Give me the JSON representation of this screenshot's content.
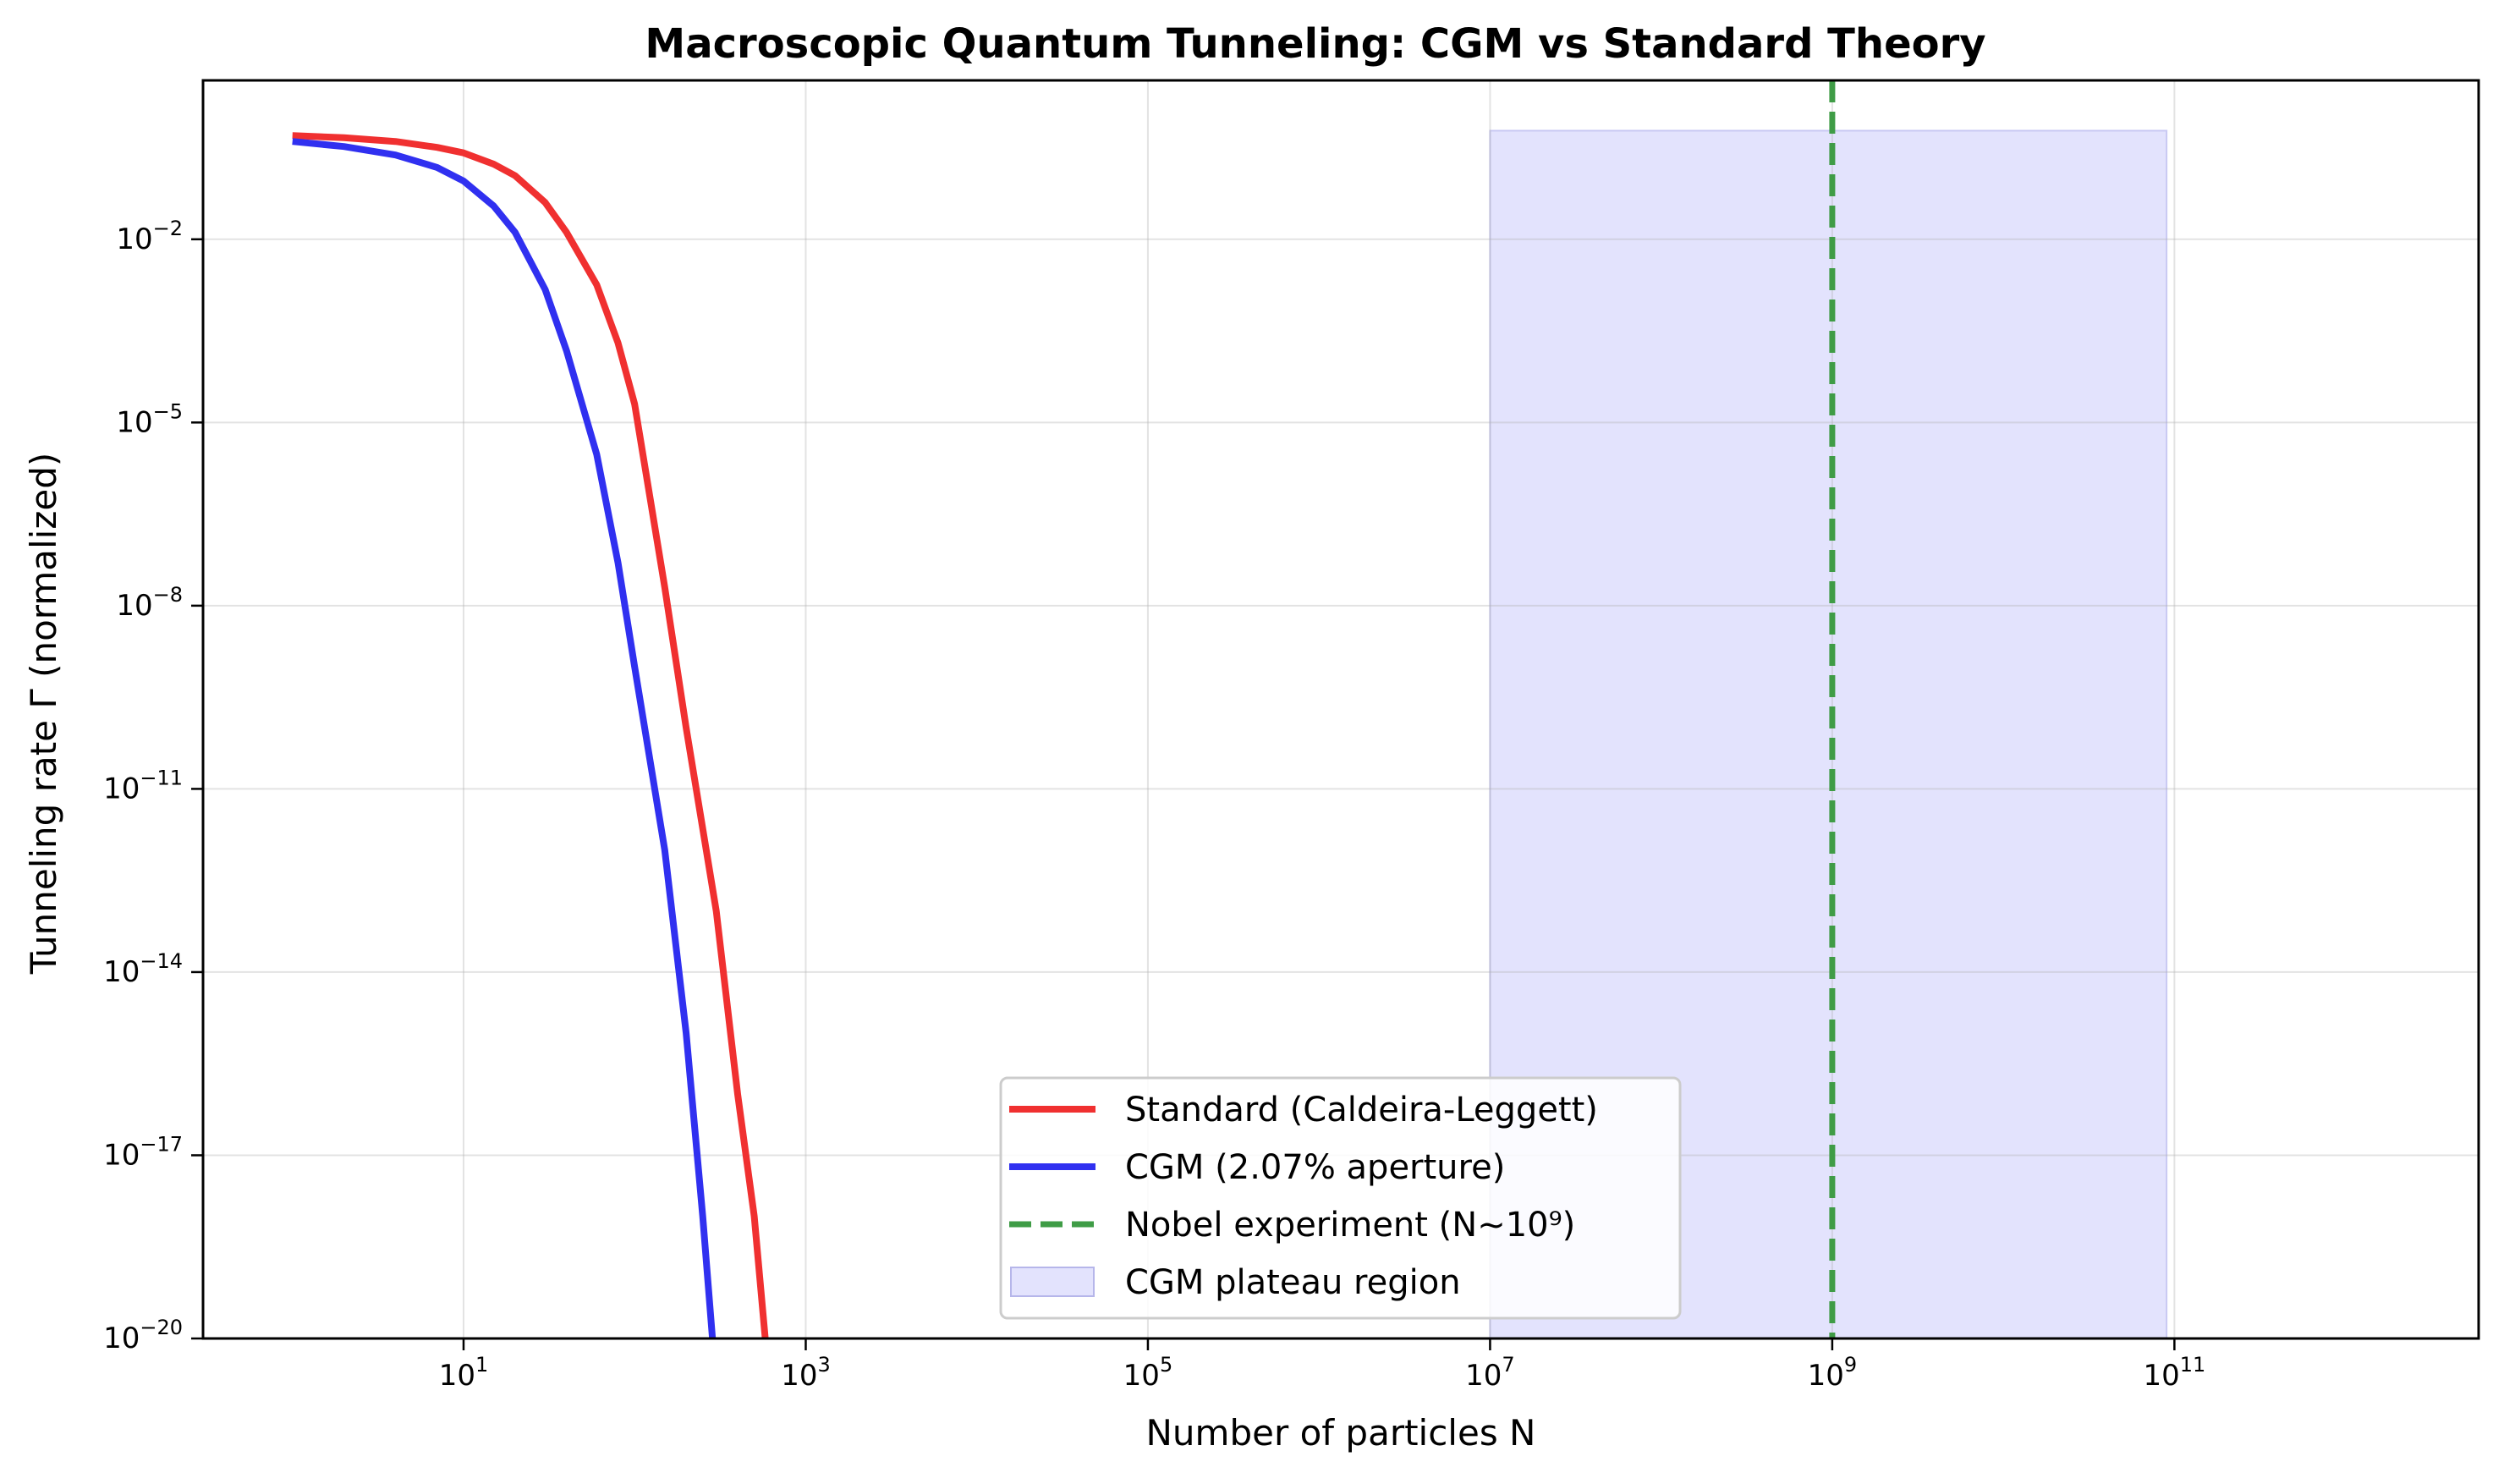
{
  "chart_data": {
    "type": "line",
    "title": "Macroscopic Quantum Tunneling: CGM vs Standard Theory",
    "xlabel": "Number of particles N",
    "ylabel": "Tunneling rate Γ (normalized)",
    "x_scale": "log",
    "y_scale": "log",
    "xlim": [
      0.3,
      6000000000000
    ],
    "ylim": [
      1e-20,
      4
    ],
    "x_ticks": [
      {
        "value": 10,
        "base": "10",
        "exp": "1"
      },
      {
        "value": 1000,
        "base": "10",
        "exp": "3"
      },
      {
        "value": 100000,
        "base": "10",
        "exp": "5"
      },
      {
        "value": 10000000,
        "base": "10",
        "exp": "7"
      },
      {
        "value": 1000000000,
        "base": "10",
        "exp": "9"
      },
      {
        "value": 100000000000,
        "base": "10",
        "exp": "11"
      }
    ],
    "y_ticks": [
      {
        "value": 0.01,
        "base": "10",
        "exp": "−2"
      },
      {
        "value": 1e-05,
        "base": "10",
        "exp": "−5"
      },
      {
        "value": 1e-08,
        "base": "10",
        "exp": "−8"
      },
      {
        "value": 1e-11,
        "base": "10",
        "exp": "−11"
      },
      {
        "value": 1e-14,
        "base": "10",
        "exp": "−14"
      },
      {
        "value": 1e-17,
        "base": "10",
        "exp": "−17"
      },
      {
        "value": 1e-20,
        "base": "10",
        "exp": "−20"
      }
    ],
    "grid": true,
    "legend_position": "lower-center",
    "series": [
      {
        "name": "Standard (Caldeira-Leggett)",
        "color": "#f03030",
        "style": "solid",
        "x": [
          1,
          2,
          4,
          7,
          10,
          15,
          20,
          30,
          40,
          60,
          80,
          100,
          150,
          200,
          300,
          400,
          500,
          580
        ],
        "y": [
          0.5,
          0.46,
          0.4,
          0.32,
          0.26,
          0.17,
          0.11,
          0.04,
          0.013,
          0.0018,
          0.0002,
          2e-05,
          2e-08,
          1e-10,
          1e-13,
          1e-16,
          1e-18,
          1e-20
        ]
      },
      {
        "name": "CGM (2.07% aperture)",
        "color": "#3030f0",
        "style": "solid",
        "x": [
          1,
          2,
          4,
          7,
          10,
          15,
          20,
          30,
          40,
          60,
          80,
          100,
          150,
          200,
          250,
          285
        ],
        "y": [
          0.4,
          0.33,
          0.24,
          0.15,
          0.09,
          0.035,
          0.013,
          0.0015,
          0.00015,
          3e-06,
          5e-08,
          1e-09,
          1e-12,
          1e-15,
          1e-18,
          1e-20
        ]
      }
    ],
    "vline": {
      "name": "Nobel experiment (N~10⁹)",
      "x": 1000000000,
      "color": "#3f9c46",
      "style": "dashed"
    },
    "span": {
      "name": "CGM plateau region",
      "x_range": [
        10000000,
        90000000000
      ],
      "y_top": 0.6,
      "color": "#e3e3fd"
    }
  }
}
